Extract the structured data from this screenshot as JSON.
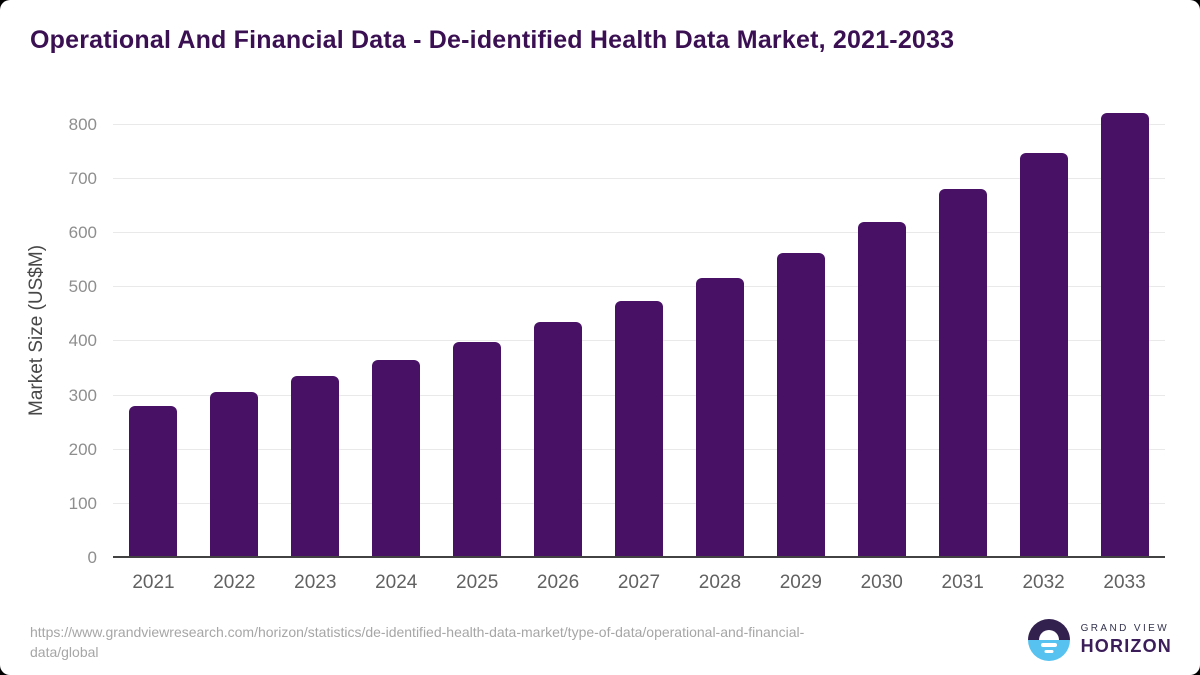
{
  "page": {
    "outer_background": "#000000",
    "card_background": "#ffffff"
  },
  "header": {
    "title": "Operational And Financial Data - De-identified Health Data Market, 2021-2033",
    "title_color": "#3b1053"
  },
  "chart_data": {
    "type": "bar",
    "title": "Operational And Financial Data - De-identified Health Data Market, 2021-2033",
    "categories": [
      "2021",
      "2022",
      "2023",
      "2024",
      "2025",
      "2026",
      "2027",
      "2028",
      "2029",
      "2030",
      "2031",
      "2032",
      "2033"
    ],
    "values": [
      281,
      306,
      336,
      366,
      398,
      435,
      474,
      517,
      564,
      620,
      681,
      748,
      822
    ],
    "xlabel": "",
    "ylabel": "Market Size (US$M)",
    "y_ticks": [
      0,
      100,
      200,
      300,
      400,
      500,
      600,
      700,
      800
    ],
    "ylim": [
      0,
      840
    ],
    "grid": true,
    "legend": "none",
    "bar_color": "#481166",
    "gridline_color": "#e9e9e9",
    "axis_line_color": "#424242",
    "y_tick_color": "#8e8e8e",
    "x_label_color": "#616161",
    "ylabel_color": "#474747"
  },
  "footer": {
    "source_url": "https://www.grandviewresearch.com/horizon/statistics/de-identified-health-data-market/type-of-data/operational-and-financial-data/global",
    "url_lines": [
      "https://www.grandviewresearch.com/horizon/statistics/de-identified-health-data-market/type-of-data/operational-and-financial-",
      "data/global"
    ],
    "url_color": "#a6a6a6",
    "logo": {
      "line1": "GRAND VIEW",
      "line2": "HORIZON",
      "icon_top_color": "#32204f",
      "icon_bottom_color": "#57c2ef",
      "icon_accent_color": "#ffffff"
    }
  }
}
